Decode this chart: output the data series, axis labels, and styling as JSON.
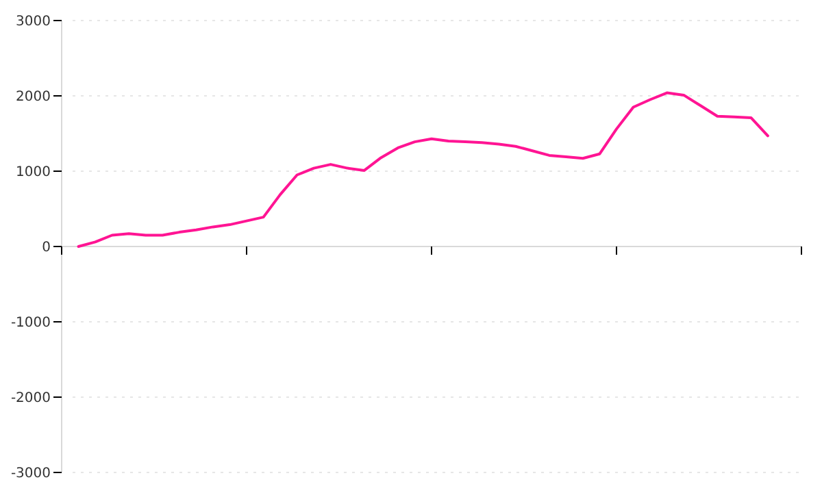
{
  "chart_data": {
    "type": "line",
    "categories": [
      null,
      null,
      null,
      null,
      null,
      null,
      null,
      null,
      null,
      null,
      null,
      null,
      null,
      null,
      null,
      null,
      null,
      null,
      null,
      null,
      null,
      null,
      null,
      null,
      null,
      null,
      null,
      null,
      null,
      null,
      null,
      null,
      null,
      null,
      null,
      null,
      null,
      null,
      null,
      null,
      null,
      null,
      null,
      null,
      null
    ],
    "series": [
      {
        "color": "#ff1493",
        "values": [
          null,
          0,
          60,
          150,
          170,
          150,
          150,
          190,
          220,
          260,
          290,
          340,
          390,
          690,
          950,
          1040,
          1090,
          1040,
          1010,
          1180,
          1310,
          1390,
          1430,
          1400,
          1390,
          1380,
          1360,
          1330,
          1270,
          1210,
          1190,
          1170,
          1230,
          1560,
          1850,
          1950,
          2040,
          2010,
          1870,
          1730,
          1720,
          1710,
          1470,
          null,
          null
        ]
      }
    ],
    "ylim": [
      -3000,
      3000
    ],
    "yticks": [
      -3000,
      -2000,
      -1000,
      0,
      1000,
      2000,
      3000
    ],
    "grid": "y",
    "tick_labels": "y",
    "marker": "none",
    "line_style": "solid"
  }
}
